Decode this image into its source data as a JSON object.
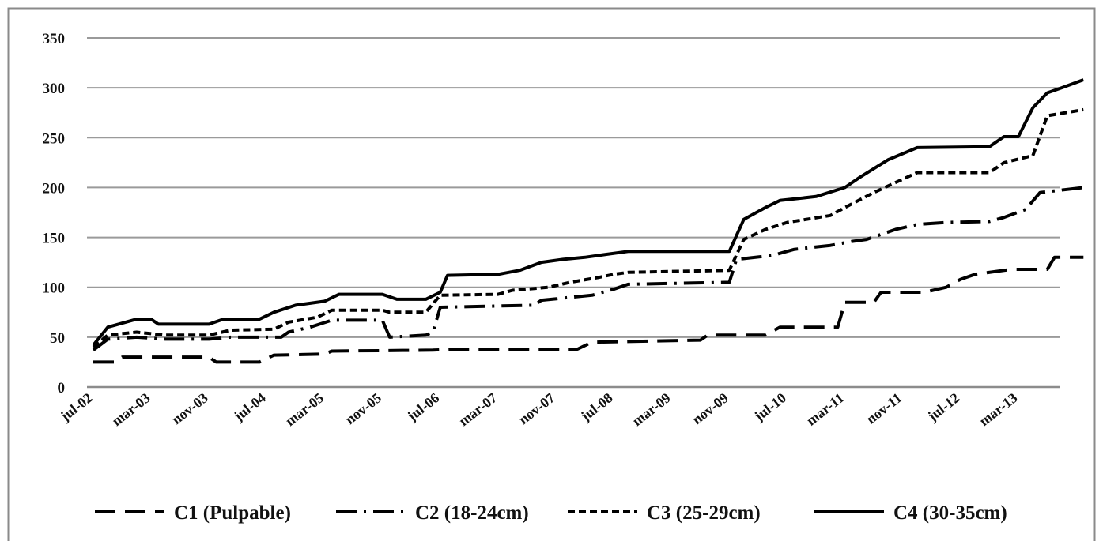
{
  "chart_data": {
    "type": "line",
    "title": "",
    "xlabel": "",
    "ylabel": "",
    "ylim": [
      0,
      350
    ],
    "y_ticks": [
      0,
      50,
      100,
      150,
      200,
      250,
      300,
      350
    ],
    "grid": true,
    "legend_position": "bottom",
    "x_ticks": [
      {
        "date": "2002-07",
        "label": "jul-02"
      },
      {
        "date": "2003-03",
        "label": "mar-03"
      },
      {
        "date": "2003-11",
        "label": "nov-03"
      },
      {
        "date": "2004-07",
        "label": "jul-04"
      },
      {
        "date": "2005-03",
        "label": "mar-05"
      },
      {
        "date": "2005-11",
        "label": "nov-05"
      },
      {
        "date": "2006-07",
        "label": "jul-06"
      },
      {
        "date": "2007-03",
        "label": "mar-07"
      },
      {
        "date": "2007-11",
        "label": "nov-07"
      },
      {
        "date": "2008-07",
        "label": "jul-08"
      },
      {
        "date": "2009-03",
        "label": "mar-09"
      },
      {
        "date": "2009-11",
        "label": "nov-09"
      },
      {
        "date": "2010-07",
        "label": "jul-10"
      },
      {
        "date": "2011-03",
        "label": "mar-11"
      },
      {
        "date": "2011-11",
        "label": "nov-11"
      },
      {
        "date": "2012-07",
        "label": "jul-12"
      },
      {
        "date": "2013-03",
        "label": "mar-13"
      }
    ],
    "series": [
      {
        "name": "C1 (Pulpable)",
        "dash": "dash",
        "points": [
          [
            "2002-07",
            25
          ],
          [
            "2002-10",
            25
          ],
          [
            "2002-11",
            30
          ],
          [
            "2003-11",
            30
          ],
          [
            "2003-12",
            25
          ],
          [
            "2004-06",
            25
          ],
          [
            "2004-08",
            32
          ],
          [
            "2005-03",
            33
          ],
          [
            "2005-04",
            36
          ],
          [
            "2006-06",
            37
          ],
          [
            "2006-09",
            38
          ],
          [
            "2008-02",
            38
          ],
          [
            "2008-04",
            45
          ],
          [
            "2009-07",
            47
          ],
          [
            "2009-08",
            52
          ],
          [
            "2010-04",
            52
          ],
          [
            "2010-06",
            60
          ],
          [
            "2011-02",
            60
          ],
          [
            "2011-03",
            85
          ],
          [
            "2011-07",
            85
          ],
          [
            "2011-08",
            95
          ],
          [
            "2012-02",
            95
          ],
          [
            "2012-05",
            100
          ],
          [
            "2012-07",
            108
          ],
          [
            "2012-09",
            113
          ],
          [
            "2013-02",
            118
          ],
          [
            "2013-07",
            118
          ],
          [
            "2013-08",
            130
          ],
          [
            "2013-12",
            130
          ]
        ]
      },
      {
        "name": "C2 (18-24cm)",
        "dash": "dashdot",
        "points": [
          [
            "2002-07",
            37
          ],
          [
            "2002-09",
            48
          ],
          [
            "2003-01",
            50
          ],
          [
            "2003-05",
            48
          ],
          [
            "2003-11",
            48
          ],
          [
            "2004-02",
            50
          ],
          [
            "2004-09",
            50
          ],
          [
            "2004-10",
            55
          ],
          [
            "2005-01",
            60
          ],
          [
            "2005-04",
            67
          ],
          [
            "2005-11",
            67
          ],
          [
            "2005-12",
            50
          ],
          [
            "2006-05",
            52
          ],
          [
            "2006-06",
            55
          ],
          [
            "2006-07",
            80
          ],
          [
            "2007-08",
            82
          ],
          [
            "2007-09",
            87
          ],
          [
            "2008-04",
            92
          ],
          [
            "2008-07",
            98
          ],
          [
            "2008-09",
            103
          ],
          [
            "2009-11",
            105
          ],
          [
            "2009-12",
            128
          ],
          [
            "2010-05",
            132
          ],
          [
            "2010-08",
            138
          ],
          [
            "2011-01",
            142
          ],
          [
            "2011-04",
            146
          ],
          [
            "2011-06",
            148
          ],
          [
            "2011-10",
            158
          ],
          [
            "2012-01",
            163
          ],
          [
            "2012-05",
            165
          ],
          [
            "2012-11",
            166
          ],
          [
            "2013-01",
            170
          ],
          [
            "2013-04",
            178
          ],
          [
            "2013-06",
            195
          ],
          [
            "2013-12",
            200
          ]
        ]
      },
      {
        "name": "C3 (25-29cm)",
        "dash": "shortdash",
        "points": [
          [
            "2002-07",
            40
          ],
          [
            "2002-09",
            52
          ],
          [
            "2003-01",
            55
          ],
          [
            "2003-05",
            52
          ],
          [
            "2003-11",
            52
          ],
          [
            "2004-02",
            57
          ],
          [
            "2004-08",
            58
          ],
          [
            "2004-10",
            65
          ],
          [
            "2005-02",
            70
          ],
          [
            "2005-04",
            77
          ],
          [
            "2005-11",
            77
          ],
          [
            "2005-12",
            75
          ],
          [
            "2006-05",
            75
          ],
          [
            "2006-07",
            92
          ],
          [
            "2007-03",
            93
          ],
          [
            "2007-05",
            97
          ],
          [
            "2007-10",
            100
          ],
          [
            "2008-01",
            105
          ],
          [
            "2008-05",
            110
          ],
          [
            "2008-07",
            113
          ],
          [
            "2008-09",
            115
          ],
          [
            "2009-11",
            117
          ],
          [
            "2010-01",
            148
          ],
          [
            "2010-04",
            158
          ],
          [
            "2010-07",
            165
          ],
          [
            "2011-01",
            172
          ],
          [
            "2011-03",
            180
          ],
          [
            "2011-07",
            195
          ],
          [
            "2011-10",
            205
          ],
          [
            "2012-01",
            215
          ],
          [
            "2012-11",
            215
          ],
          [
            "2013-01",
            225
          ],
          [
            "2013-05",
            232
          ],
          [
            "2013-07",
            272
          ],
          [
            "2013-12",
            278
          ]
        ]
      },
      {
        "name": "C4 (30-35cm)",
        "dash": "solid",
        "points": [
          [
            "2002-07",
            42
          ],
          [
            "2002-09",
            60
          ],
          [
            "2003-01",
            68
          ],
          [
            "2003-03",
            68
          ],
          [
            "2003-04",
            63
          ],
          [
            "2003-11",
            63
          ],
          [
            "2004-01",
            68
          ],
          [
            "2004-06",
            68
          ],
          [
            "2004-08",
            75
          ],
          [
            "2004-11",
            82
          ],
          [
            "2005-03",
            86
          ],
          [
            "2005-05",
            93
          ],
          [
            "2005-11",
            93
          ],
          [
            "2006-01",
            88
          ],
          [
            "2006-05",
            88
          ],
          [
            "2006-07",
            95
          ],
          [
            "2006-08",
            112
          ],
          [
            "2007-03",
            113
          ],
          [
            "2007-06",
            117
          ],
          [
            "2007-09",
            125
          ],
          [
            "2007-12",
            128
          ],
          [
            "2008-03",
            130
          ],
          [
            "2008-06",
            133
          ],
          [
            "2008-09",
            136
          ],
          [
            "2009-11",
            136
          ],
          [
            "2010-01",
            168
          ],
          [
            "2010-04",
            180
          ],
          [
            "2010-06",
            187
          ],
          [
            "2010-11",
            191
          ],
          [
            "2011-03",
            200
          ],
          [
            "2011-05",
            210
          ],
          [
            "2011-09",
            228
          ],
          [
            "2012-01",
            240
          ],
          [
            "2012-11",
            241
          ],
          [
            "2013-01",
            251
          ],
          [
            "2013-03",
            251
          ],
          [
            "2013-05",
            280
          ],
          [
            "2013-07",
            295
          ],
          [
            "2013-09",
            300
          ],
          [
            "2013-12",
            308
          ]
        ]
      }
    ]
  }
}
